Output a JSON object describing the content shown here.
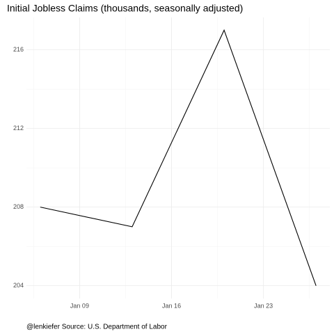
{
  "chart_data": {
    "type": "line",
    "title": "Initial Jobless Claims (thousands, seasonally adjusted)",
    "caption": "@lenkiefer Source: U.S. Department of Labor",
    "x": [
      6,
      13,
      20,
      27
    ],
    "series": [
      {
        "name": "Initial Jobless Claims",
        "color": "#000000",
        "values": [
          208,
          207,
          217,
          204
        ]
      }
    ],
    "xlim": [
      4.95,
      28.05
    ],
    "xticks": [
      {
        "value": 9,
        "label": "Jan 09"
      },
      {
        "value": 16,
        "label": "Jan 16"
      },
      {
        "value": 23,
        "label": "Jan 23"
      }
    ],
    "ylim": [
      203.35,
      217.65
    ],
    "yticks": [
      204,
      208,
      212,
      216
    ],
    "grid": true
  }
}
